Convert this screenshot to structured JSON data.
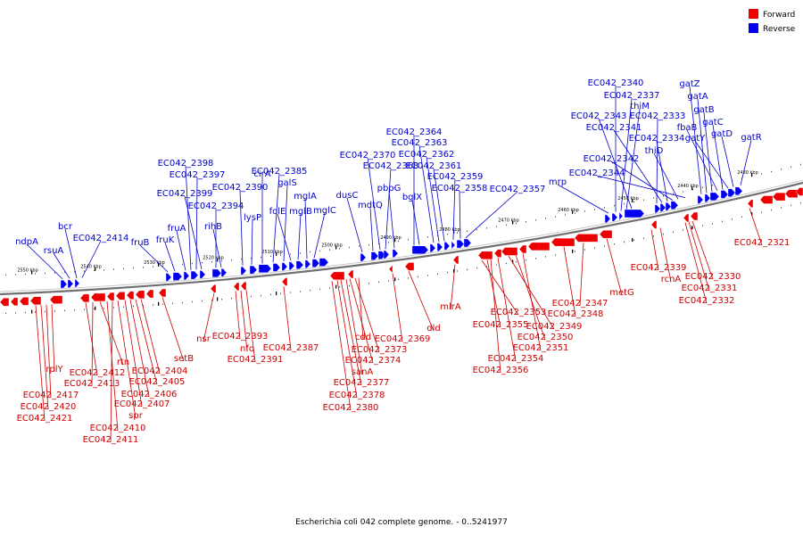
{
  "legend": [
    {
      "label": "Forward",
      "color": "#ee0000"
    },
    {
      "label": "Reverse",
      "color": "#0000ee"
    }
  ],
  "caption": "Escherichia coli 042 complete genome. - 0..5241977",
  "ticks": [
    "2550 kbp",
    "2540 kbp",
    "2530 kbp",
    "2520 kbp",
    "2510 kbp",
    "2500 kbp",
    "2490 kbp",
    "2480 kbp",
    "2470 kbp",
    "2460 kbp",
    "2450 kbp",
    "2440 kbp",
    "2430 kbp"
  ],
  "forward_labels": [
    "rplY",
    "EC042_2417",
    "EC042_2420",
    "EC042_2421",
    "EC042_2412",
    "EC042_2413",
    "rtn",
    "EC042_2410",
    "EC042_2411",
    "spr",
    "EC042_2407",
    "EC042_2406",
    "EC042_2405",
    "EC042_2404",
    "setB",
    "nsr",
    "EC042_2393",
    "nfo",
    "EC042_2391",
    "EC042_2387",
    "cdd",
    "EC042_2373",
    "EC042_2374",
    "sanA",
    "EC042_2377",
    "EC042_2378",
    "EC042_2380",
    "EC042_2369",
    "dld",
    "mlrA",
    "EC042_2353",
    "EC042_2355",
    "EC042_2354",
    "EC042_2356",
    "EC042_2349",
    "EC042_2350",
    "EC042_2351",
    "EC042_2348",
    "EC042_2347",
    "metG",
    "EC042_2339",
    "rcnA",
    "EC042_2330",
    "EC042_2331",
    "EC042_2332",
    "EC042_2321"
  ],
  "reverse_labels": [
    "ndpA",
    "rsuA",
    "bcr",
    "EC042_2414",
    "fruB",
    "fruK",
    "fruA",
    "EC042_2398",
    "EC042_2397",
    "EC042_2399",
    "EC042_2394",
    "rihB",
    "EC042_2390",
    "lysP",
    "cirA",
    "EC042_2385",
    "galS",
    "folE",
    "mglB",
    "mglA",
    "mglC",
    "dusC",
    "mdtQ",
    "EC042_2370",
    "EC042_2368",
    "pbpG",
    "EC042_2364",
    "EC042_2363",
    "EC042_2362",
    "EC042_2361",
    "bglX",
    "EC042_2359",
    "EC042_2358",
    "EC042_2357",
    "mrp",
    "EC042_2340",
    "EC042_2337",
    "thiM",
    "EC042_2343",
    "EC042_2333",
    "EC042_2341",
    "EC042_2334",
    "EC042_2342",
    "thiD",
    "EC042_2344",
    "gatZ",
    "gatA",
    "gatB",
    "fbaB",
    "gatC",
    "gatY",
    "gatD",
    "gatR"
  ]
}
